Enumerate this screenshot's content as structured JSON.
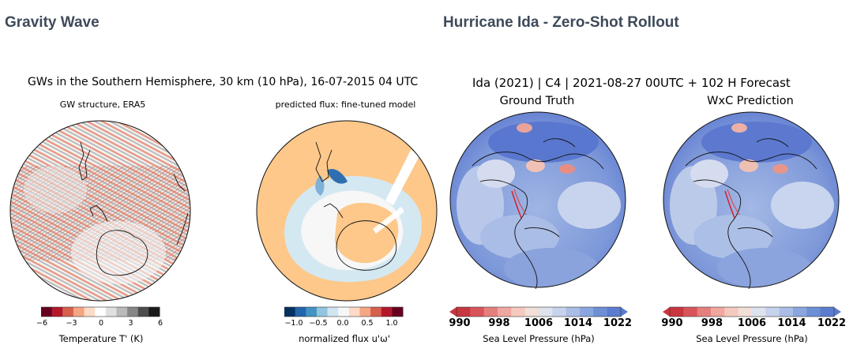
{
  "sections": {
    "left_title": "Gravity Wave",
    "right_title": "Hurricane Ida - Zero-Shot Rollout"
  },
  "chart_data": [
    {
      "type": "heatmap",
      "figure_title": "GWs in the Southern Hemisphere, 30 km (10 hPa), 16-07-2015 04 UTC",
      "title": "GW structure, ERA5",
      "colorbar": {
        "label": "Temperature T' (K)",
        "ticks": [
          "−6",
          "−3",
          "0",
          "3",
          "6"
        ],
        "range": [
          -6,
          6
        ],
        "colors": [
          "#67001f",
          "#b2182b",
          "#d6604d",
          "#f4a582",
          "#fddbc7",
          "#ffffff",
          "#e0e0e0",
          "#bababa",
          "#878787",
          "#4d4d4d",
          "#1a1a1a"
        ]
      }
    },
    {
      "type": "heatmap",
      "title": "predicted flux: fine-tuned model",
      "colorbar": {
        "label": "normalized flux u'ω'",
        "ticks": [
          "−1.0",
          "−0.5",
          "0.0",
          "0.5",
          "1.0"
        ],
        "range": [
          -1.0,
          1.0
        ],
        "colors": [
          "#053061",
          "#2166ac",
          "#4393c3",
          "#92c5de",
          "#d1e5f0",
          "#f7f7f7",
          "#fddbc7",
          "#f4a582",
          "#d6604d",
          "#b2182b",
          "#67001f"
        ]
      }
    },
    {
      "type": "heatmap",
      "figure_title": "Ida (2021) | C4 | 2021-08-27 00UTC + 102 H Forecast",
      "title": "Ground Truth",
      "colorbar": {
        "label": "Sea Level Pressure (hPa)",
        "ticks": [
          "990",
          "998",
          "1006",
          "1014",
          "1022"
        ],
        "range": [
          990,
          1022
        ],
        "colors": [
          "#c8363f",
          "#d9545a",
          "#e57f7e",
          "#f0a79f",
          "#f5c9bd",
          "#f2dfd7",
          "#dfe3ee",
          "#c7d3ec",
          "#a9bde6",
          "#8ba6df",
          "#6d8fd6",
          "#5b7ccf"
        ]
      }
    },
    {
      "type": "heatmap",
      "title": "WxC Prediction",
      "colorbar": {
        "label": "Sea Level Pressure (hPa)",
        "ticks": [
          "990",
          "998",
          "1006",
          "1014",
          "1022"
        ],
        "range": [
          990,
          1022
        ],
        "colors": [
          "#c8363f",
          "#d9545a",
          "#e57f7e",
          "#f0a79f",
          "#f5c9bd",
          "#f2dfd7",
          "#dfe3ee",
          "#c7d3ec",
          "#a9bde6",
          "#8ba6df",
          "#6d8fd6",
          "#5b7ccf"
        ]
      }
    }
  ]
}
